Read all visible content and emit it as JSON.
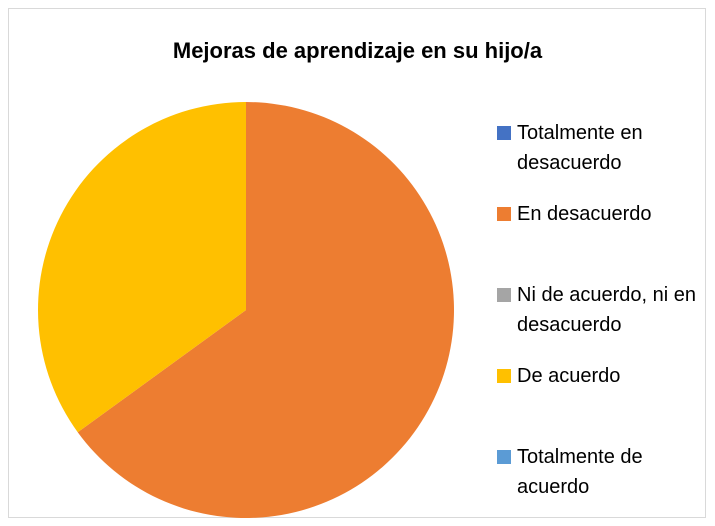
{
  "chart_data": {
    "type": "pie",
    "title": "Mejoras de aprendizaje en su hijo/a",
    "categories": [
      "Totalmente en desacuerdo",
      "En desacuerdo",
      "Ni de acuerdo, ni en desacuerdo",
      "De acuerdo",
      "Totalmente de acuerdo"
    ],
    "values": [
      0,
      65,
      0,
      35,
      0
    ],
    "colors": [
      "#4472c4",
      "#ed7d31",
      "#a5a5a5",
      "#ffc000",
      "#5b9bd5"
    ],
    "legend": "right"
  }
}
